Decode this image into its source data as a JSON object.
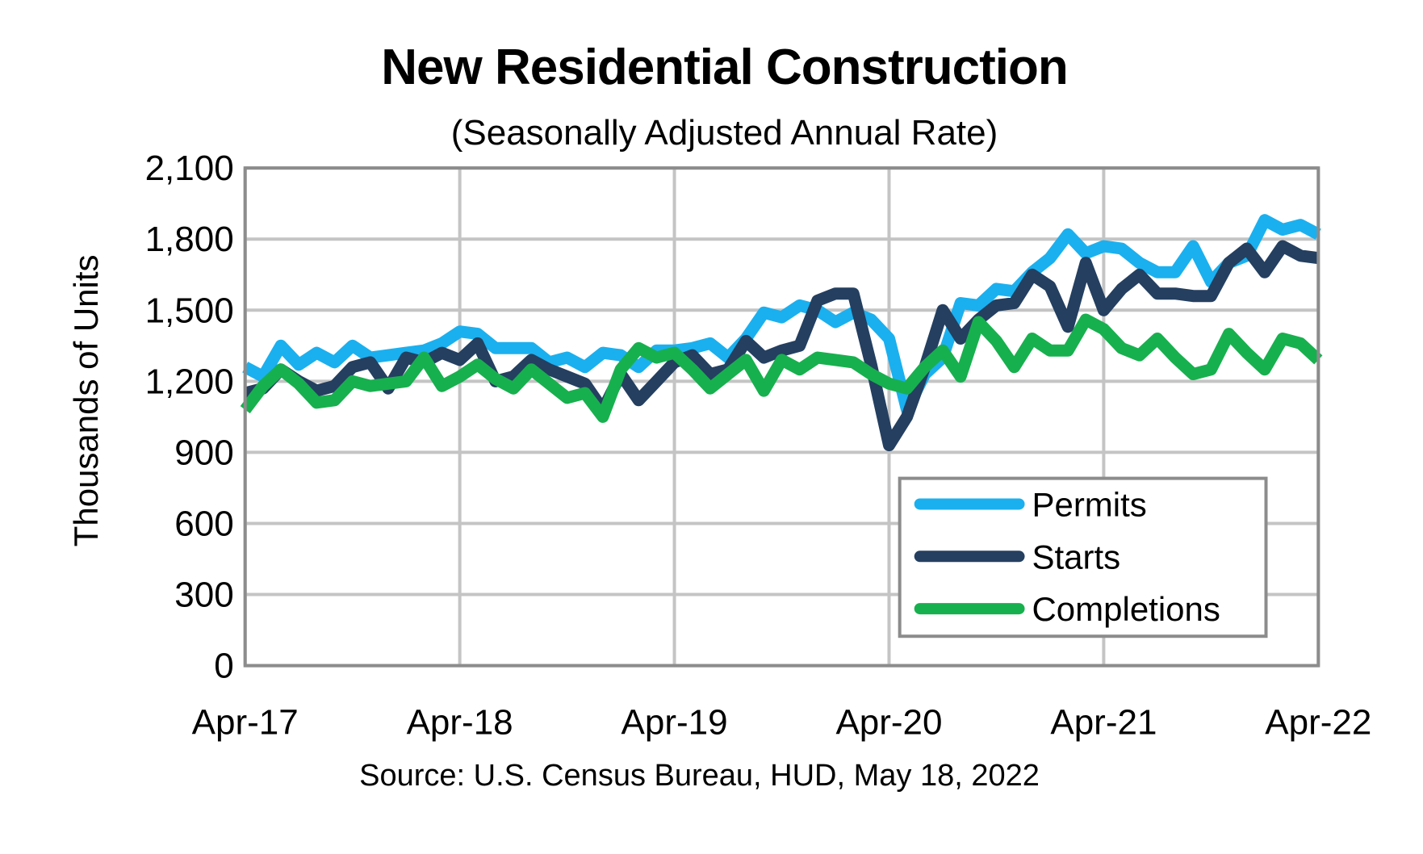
{
  "chart_data": {
    "type": "line",
    "title": "New Residential Construction",
    "subtitle": "(Seasonally Adjusted Annual Rate)",
    "xlabel": "",
    "ylabel": "Thousands of Units",
    "source": "Source:  U.S. Census Bureau, HUD, May 18, 2022",
    "ylim": [
      0,
      2100
    ],
    "yticks": [
      0,
      300,
      600,
      900,
      1200,
      1500,
      1800,
      2100
    ],
    "ytick_labels": [
      "0",
      "300",
      "600",
      "900",
      "1,200",
      "1,500",
      "1,800",
      "2,100"
    ],
    "x_start": "Apr-17",
    "x_end": "Apr-22",
    "x_frequency": "monthly",
    "n_points": 61,
    "xtick_labels": [
      "Apr-17",
      "Apr-18",
      "Apr-19",
      "Apr-20",
      "Apr-21",
      "Apr-22"
    ],
    "xtick_index": [
      0,
      12,
      24,
      36,
      48,
      60
    ],
    "grid": true,
    "legend_position": "bottom-right",
    "series": [
      {
        "name": "Permits",
        "color": "#1AB0EF",
        "values": [
          1260,
          1220,
          1350,
          1270,
          1320,
          1280,
          1350,
          1300,
          1310,
          1320,
          1330,
          1360,
          1410,
          1400,
          1340,
          1340,
          1340,
          1280,
          1300,
          1260,
          1320,
          1310,
          1260,
          1330,
          1330,
          1340,
          1360,
          1300,
          1380,
          1490,
          1470,
          1520,
          1500,
          1450,
          1490,
          1460,
          1380,
          1080,
          1230,
          1300,
          1530,
          1520,
          1590,
          1580,
          1660,
          1720,
          1820,
          1740,
          1770,
          1760,
          1700,
          1660,
          1660,
          1770,
          1620,
          1700,
          1730,
          1880,
          1840,
          1860,
          1820
        ]
      },
      {
        "name": "Starts",
        "color": "#243F60",
        "values": [
          1150,
          1170,
          1250,
          1200,
          1160,
          1180,
          1260,
          1280,
          1170,
          1300,
          1280,
          1320,
          1290,
          1360,
          1200,
          1220,
          1290,
          1250,
          1220,
          1190,
          1080,
          1230,
          1120,
          1200,
          1280,
          1310,
          1230,
          1250,
          1370,
          1300,
          1330,
          1350,
          1540,
          1570,
          1570,
          1270,
          930,
          1050,
          1260,
          1500,
          1380,
          1460,
          1520,
          1530,
          1650,
          1600,
          1430,
          1700,
          1500,
          1590,
          1650,
          1570,
          1570,
          1560,
          1560,
          1700,
          1760,
          1660,
          1770,
          1730,
          1720
        ]
      },
      {
        "name": "Completions",
        "color": "#17B04E",
        "values": [
          1080,
          1180,
          1250,
          1190,
          1110,
          1120,
          1200,
          1180,
          1190,
          1200,
          1300,
          1180,
          1220,
          1270,
          1210,
          1170,
          1250,
          1190,
          1130,
          1150,
          1050,
          1250,
          1340,
          1300,
          1320,
          1250,
          1170,
          1230,
          1290,
          1160,
          1290,
          1250,
          1300,
          1290,
          1280,
          1230,
          1190,
          1170,
          1260,
          1330,
          1220,
          1450,
          1370,
          1260,
          1380,
          1330,
          1330,
          1460,
          1420,
          1340,
          1310,
          1380,
          1300,
          1230,
          1250,
          1400,
          1320,
          1250,
          1380,
          1360,
          1290
        ]
      }
    ]
  }
}
